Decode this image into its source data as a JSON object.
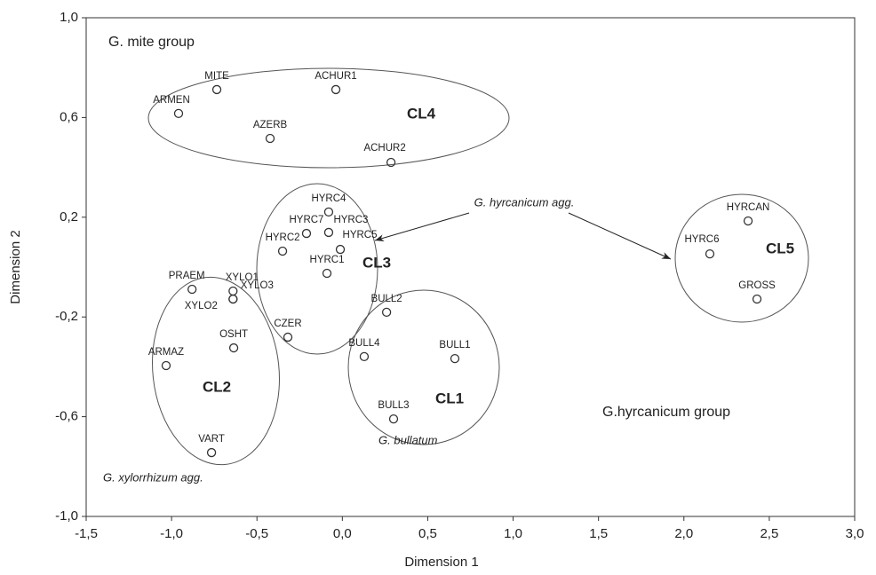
{
  "chart_data": {
    "type": "scatter",
    "xlabel": "Dimension 1",
    "ylabel": "Dimension 2",
    "xlim": [
      -1.5,
      3.0
    ],
    "ylim": [
      -1.0,
      1.0
    ],
    "xticks": [
      {
        "value": -1.5,
        "label": "-1,5"
      },
      {
        "value": -1.0,
        "label": "-1,0"
      },
      {
        "value": -0.5,
        "label": "-0,5"
      },
      {
        "value": 0,
        "label": "0,0"
      },
      {
        "value": 0.5,
        "label": "0,5"
      },
      {
        "value": 1.0,
        "label": "1,0"
      },
      {
        "value": 1.5,
        "label": "1,5"
      },
      {
        "value": 2.0,
        "label": "2,0"
      },
      {
        "value": 2.5,
        "label": "2,5"
      },
      {
        "value": 3.0,
        "label": "3,0"
      }
    ],
    "yticks": [
      {
        "value": -1.0,
        "label": "-1,0"
      },
      {
        "value": -0.6,
        "label": "-0,6"
      },
      {
        "value": -0.2,
        "label": "-0,2"
      },
      {
        "value": 0.2,
        "label": "0,2"
      },
      {
        "value": 0.6,
        "label": "0,6"
      },
      {
        "value": 1.0,
        "label": "1,0"
      }
    ],
    "grid": false,
    "series": [
      {
        "color": "#333333",
        "labels": [
          "MITE",
          "ARMEN",
          "ACHUR1",
          "AZERB",
          "ACHUR2",
          "HYRC4",
          "HYRC7",
          "HYRC3",
          "HYRC5",
          "HYRC2",
          "HYRC1",
          "PRAEM",
          "XYLO1",
          "XYLO3",
          "XYLO2",
          "BULL2",
          "CZER",
          "OSHT",
          "BULL4",
          "BULL1",
          "ARMAZ",
          "BULL3",
          "VART",
          "HYRCAN",
          "HYRC6",
          "GROSS"
        ],
        "x": [
          -0.735,
          -0.959,
          -0.038,
          -0.423,
          0.285,
          -0.08,
          -0.21,
          -0.08,
          -0.012,
          -0.35,
          -0.09,
          -0.88,
          -0.64,
          -0.64,
          -0.64,
          0.259,
          -0.319,
          -0.636,
          0.128,
          0.659,
          -1.032,
          0.3,
          -0.766,
          2.376,
          2.152,
          2.428
        ],
        "values": [
          0.712,
          0.616,
          0.712,
          0.516,
          0.42,
          0.221,
          0.135,
          0.139,
          0.071,
          0.064,
          -0.025,
          -0.089,
          -0.096,
          -0.128,
          -0.128,
          -0.181,
          -0.281,
          -0.324,
          -0.359,
          -0.367,
          -0.395,
          -0.609,
          -0.744,
          0.185,
          0.053,
          -0.128
        ]
      }
    ],
    "annotations": [
      "G. mite group",
      "CL4",
      "CL3",
      "CL2",
      "CL1",
      "CL5",
      "G. hyrcanicum agg.",
      "G. bullatum",
      "G. xylorrhizum agg.",
      "G.hyrcanicum group"
    ]
  }
}
